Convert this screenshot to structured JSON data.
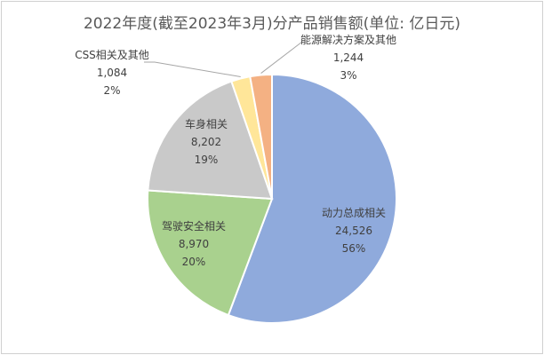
{
  "chart_data": {
    "type": "pie",
    "title": "2022年度(截至2023年3月)分产品销售额(单位: 亿日元)",
    "slices": [
      {
        "name": "动力总成相关",
        "value": "24,526",
        "percent": "56%",
        "color": "#8faadc"
      },
      {
        "name": "驾驶安全相关",
        "value": "8,970",
        "percent": "20%",
        "color": "#a9d18e"
      },
      {
        "name": "车身相关",
        "value": "8,202",
        "percent": "19%",
        "color": "#c9c9c9"
      },
      {
        "name": "CSS相关及其他",
        "value": "1,084",
        "percent": "2%",
        "color": "#ffe699"
      },
      {
        "name": "能源解决方案及其他",
        "value": "1,244",
        "percent": "3%",
        "color": "#f4b183"
      }
    ]
  }
}
